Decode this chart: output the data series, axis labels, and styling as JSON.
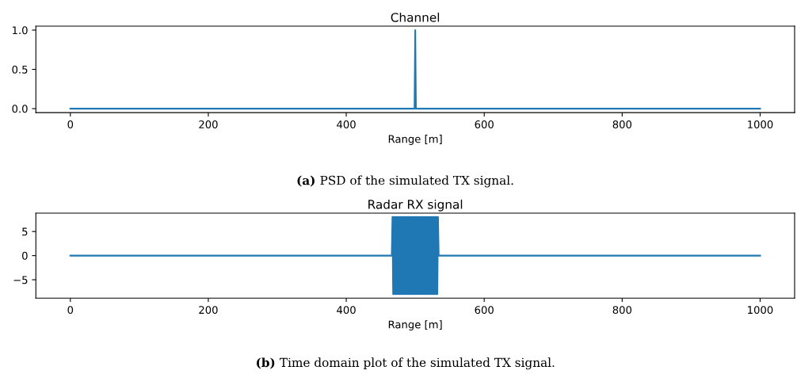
{
  "chart_data": [
    {
      "type": "line",
      "title": "Channel",
      "xlabel": "Range [m]",
      "series": [
        {
          "color": "#1f77b4",
          "x": [
            0,
            499,
            500,
            501,
            1000
          ],
          "values": [
            0,
            0,
            1,
            0,
            0
          ]
        }
      ],
      "xlim": [
        -50,
        1050
      ],
      "ylim": [
        -0.05,
        1.05
      ],
      "xticks": [
        0,
        200,
        400,
        600,
        800,
        1000
      ],
      "yticks": [
        {
          "value": 0,
          "label": "0.0"
        },
        {
          "value": 0.5,
          "label": "0.5"
        },
        {
          "value": 1,
          "label": "1.0"
        }
      ],
      "grid": false,
      "annotations": [
        "(a) PSD of the simulated TX signal."
      ]
    },
    {
      "type": "line",
      "title": "Radar RX signal",
      "xlabel": "Range [m]",
      "series": [
        {
          "color": "#1f77b4",
          "x": [
            0,
            466,
            467,
            468,
            469,
            470,
            471,
            472,
            473,
            474,
            475,
            476,
            477,
            478,
            479,
            480,
            481,
            482,
            483,
            484,
            485,
            486,
            487,
            488,
            489,
            490,
            491,
            492,
            493,
            494,
            495,
            496,
            497,
            498,
            499,
            500,
            501,
            502,
            503,
            504,
            505,
            506,
            507,
            508,
            509,
            510,
            511,
            512,
            513,
            514,
            515,
            516,
            517,
            518,
            519,
            520,
            521,
            522,
            523,
            524,
            525,
            526,
            527,
            528,
            529,
            530,
            531,
            532,
            533,
            534,
            1000
          ],
          "values": [
            0,
            0,
            8,
            -8,
            8,
            -8,
            8,
            -8,
            8,
            -8,
            8,
            -8,
            8,
            -8,
            8,
            -8,
            8,
            -8,
            8,
            -8,
            8,
            -8,
            8,
            -8,
            8,
            -8,
            8,
            -8,
            8,
            -8,
            8,
            -8,
            8,
            -8,
            8,
            -8,
            8,
            -8,
            8,
            -8,
            8,
            -8,
            8,
            -8,
            8,
            -8,
            8,
            -8,
            8,
            -8,
            8,
            -8,
            8,
            -8,
            8,
            -8,
            8,
            -8,
            8,
            -8,
            8,
            -8,
            8,
            -8,
            8,
            -8,
            8,
            -8,
            8,
            0,
            0
          ]
        }
      ],
      "xlim": [
        -50,
        1050
      ],
      "ylim": [
        -8.8,
        8.8
      ],
      "xticks": [
        0,
        200,
        400,
        600,
        800,
        1000
      ],
      "yticks": [
        {
          "value": -5,
          "label": "−5"
        },
        0,
        5
      ],
      "grid": false,
      "annotations": [
        "(b) Time domain plot of the simulated TX signal."
      ]
    }
  ]
}
